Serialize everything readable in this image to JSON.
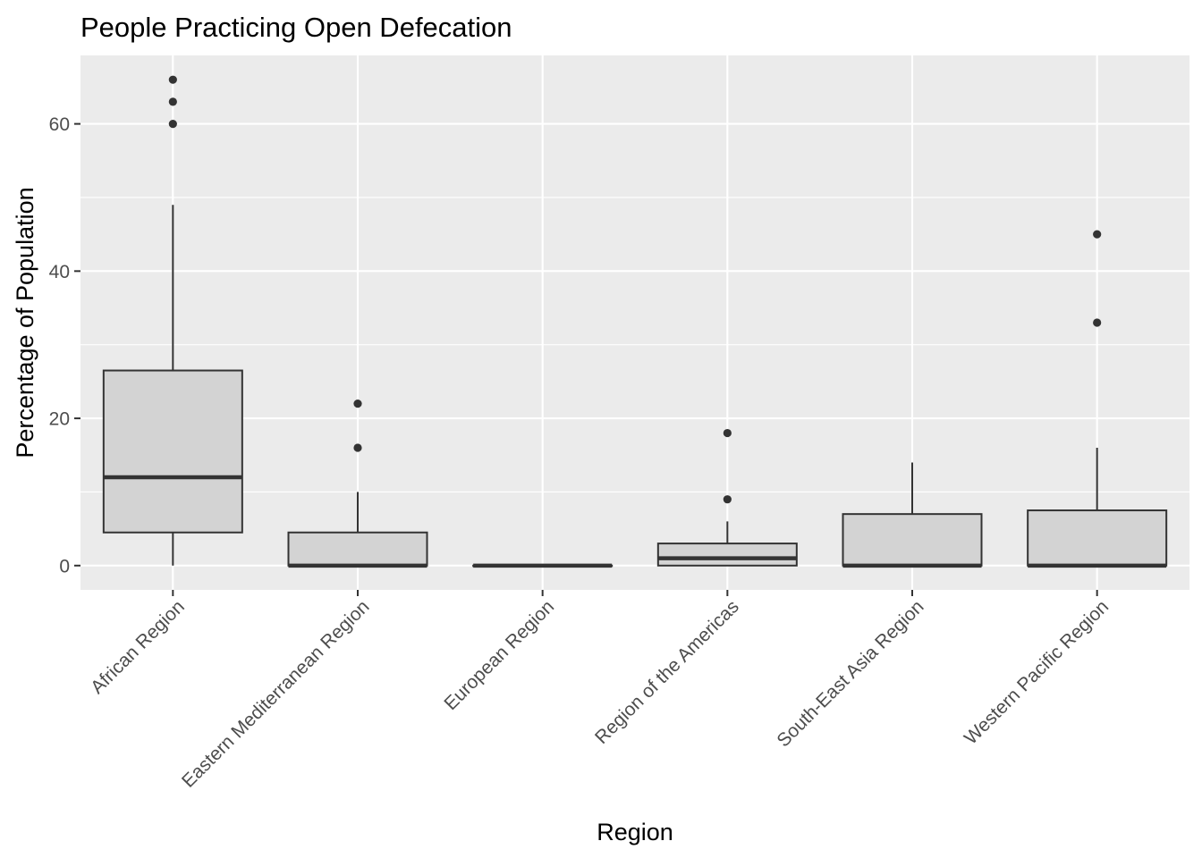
{
  "chart_data": {
    "type": "boxplot",
    "title": "People Practicing Open Defecation",
    "xlabel": "Region",
    "ylabel": "Percentage of Population",
    "ylim": [
      -3.3,
      69.3
    ],
    "yticks": [
      0,
      20,
      40,
      60
    ],
    "grid": true,
    "categories": [
      "African Region",
      "Eastern Mediterranean Region",
      "European Region",
      "Region of the Americas",
      "South-East Asia Region",
      "Western Pacific Region"
    ],
    "boxes": [
      {
        "category": "African Region",
        "min": 0,
        "q1": 4.5,
        "median": 12,
        "q3": 26.5,
        "max": 49,
        "outliers": [
          60,
          63,
          66
        ]
      },
      {
        "category": "Eastern Mediterranean Region",
        "min": 0,
        "q1": 0,
        "median": 0,
        "q3": 4.5,
        "max": 10,
        "outliers": [
          16,
          22
        ]
      },
      {
        "category": "European Region",
        "min": 0,
        "q1": 0,
        "median": 0,
        "q3": 0,
        "max": 0,
        "outliers": []
      },
      {
        "category": "Region of the Americas",
        "min": 0,
        "q1": 0,
        "median": 1,
        "q3": 3,
        "max": 6,
        "outliers": [
          9,
          18
        ]
      },
      {
        "category": "South-East Asia Region",
        "min": 0,
        "q1": 0,
        "median": 0,
        "q3": 7,
        "max": 14,
        "outliers": []
      },
      {
        "category": "Western Pacific Region",
        "min": 0,
        "q1": 0,
        "median": 0,
        "q3": 7.5,
        "max": 16,
        "outliers": [
          33,
          45
        ]
      }
    ],
    "colors": {
      "panel": "#ebebeb",
      "grid": "#ffffff",
      "box_fill": "#d3d3d3",
      "box_line": "#333333",
      "axis_text": "#4d4d4d"
    }
  }
}
